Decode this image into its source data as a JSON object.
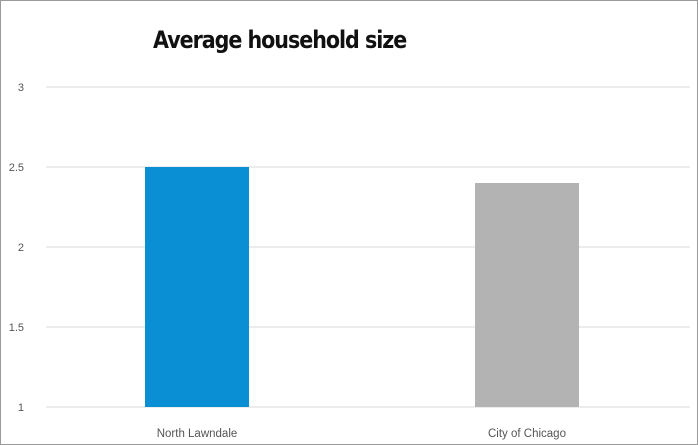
{
  "chart_data": {
    "type": "bar",
    "title": "Average household size",
    "categories": [
      "North Lawndale",
      "City of Chicago"
    ],
    "values": [
      2.5,
      2.4
    ],
    "colors": [
      "#0a8fd4",
      "#b3b3b3"
    ],
    "yticks": [
      "1",
      "1.5",
      "2",
      "2.5",
      "3"
    ],
    "ylim": [
      1,
      3
    ],
    "grid": true,
    "xlabel": "",
    "ylabel": ""
  }
}
